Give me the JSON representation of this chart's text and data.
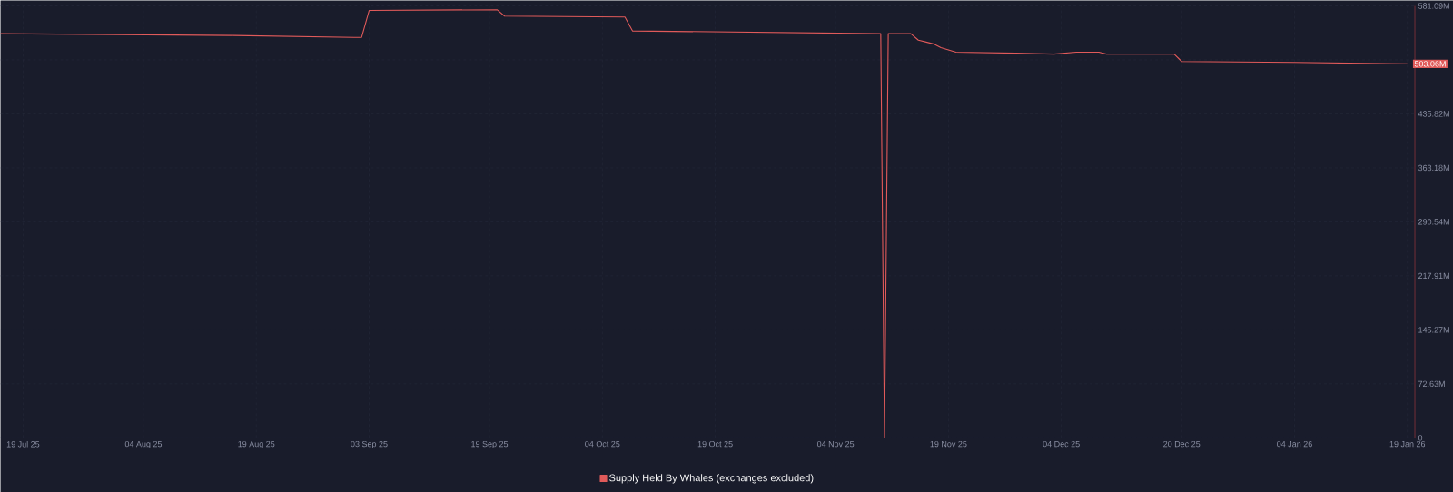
{
  "chart_data": {
    "type": "line",
    "x": [
      "2025-07-16",
      "2025-08-16",
      "2025-09-01",
      "2025-09-02",
      "2025-09-03",
      "2025-09-20",
      "2025-09-21",
      "2025-10-07",
      "2025-10-08",
      "2025-11-10",
      "2025-11-10T12:00",
      "2025-11-11",
      "2025-11-14",
      "2025-11-15",
      "2025-11-17",
      "2025-11-18",
      "2025-11-20",
      "2025-11-28",
      "2025-12-03",
      "2025-12-06",
      "2025-12-09",
      "2025-12-10",
      "2025-12-19",
      "2025-12-20",
      "2026-01-04",
      "2026-01-19"
    ],
    "series": [
      {
        "name": "Supply Held By Whales (exchanges excluded)",
        "color": "#e05a5a",
        "values": [
          543.7,
          541.3,
          538.7,
          538.7,
          574.9,
          576.0,
          567.4,
          566.1,
          547.4,
          543.7,
          0,
          543.7,
          543.7,
          535,
          530,
          525,
          518.8,
          517.5,
          516.2,
          518.8,
          518.8,
          516.2,
          516.2,
          506.3,
          505,
          503.06
        ]
      }
    ],
    "xlim": [
      "2025-07-16",
      "2026-01-20"
    ],
    "xticks": [
      {
        "value": "2025-07-19",
        "label": "19 Jul 25"
      },
      {
        "value": "2025-08-04",
        "label": "04 Aug 25"
      },
      {
        "value": "2025-08-19",
        "label": "19 Aug 25"
      },
      {
        "value": "2025-09-03",
        "label": "03 Sep 25"
      },
      {
        "value": "2025-09-19",
        "label": "19 Sep 25"
      },
      {
        "value": "2025-10-04",
        "label": "04 Oct 25"
      },
      {
        "value": "2025-10-19",
        "label": "19 Oct 25"
      },
      {
        "value": "2025-11-04",
        "label": "04 Nov 25"
      },
      {
        "value": "2025-11-19",
        "label": "19 Nov 25"
      },
      {
        "value": "2025-12-04",
        "label": "04 Dec 25"
      },
      {
        "value": "2025-12-20",
        "label": "20 Dec 25"
      },
      {
        "value": "2026-01-04",
        "label": "04 Jan 26"
      },
      {
        "value": "2026-01-19",
        "label": "19 Jan 26"
      }
    ],
    "ylim": [
      0,
      581.09
    ],
    "yticks": [
      0,
      {
        "value": 72.63,
        "label": "72.63M"
      },
      {
        "value": 145.27,
        "label": "145.27M"
      },
      {
        "value": 217.91,
        "label": "217.91M"
      },
      {
        "value": 290.54,
        "label": "290.54M"
      },
      {
        "value": 363.18,
        "label": "363.18M"
      },
      {
        "value": 435.82,
        "label": "435.82M"
      },
      {
        "value": 508.46,
        "label": null
      },
      {
        "value": 581.09,
        "label": "581.09M"
      }
    ],
    "annotations": [
      {
        "text": "503.06M",
        "x": "2026-01-19",
        "y": 503.06
      }
    ],
    "grid": true,
    "legend": "bottom",
    "marker": "none",
    "line_style": "solid"
  }
}
